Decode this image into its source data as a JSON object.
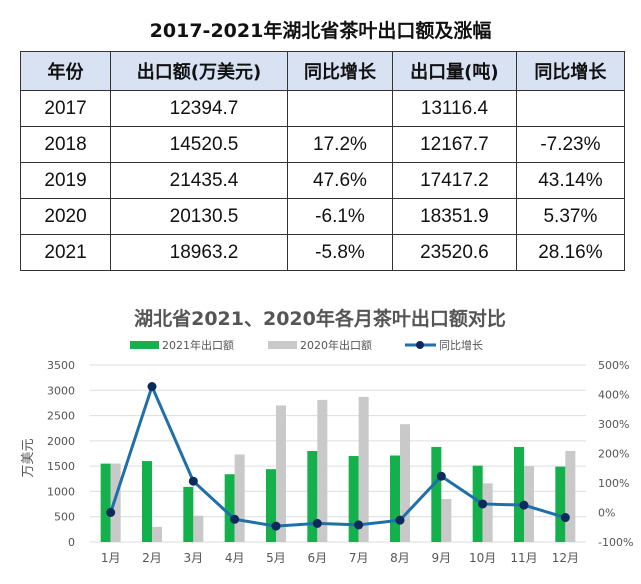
{
  "table": {
    "title": "2017-2021年湖北省茶叶出口额及涨幅",
    "headers": [
      "年份",
      "出口额(万美元)",
      "同比增长",
      "出口量(吨)",
      "同比增长"
    ],
    "rows": [
      [
        "2017",
        "12394.7",
        "",
        "13116.4",
        ""
      ],
      [
        "2018",
        "14520.5",
        "17.2%",
        "12167.7",
        "-7.23%"
      ],
      [
        "2019",
        "21435.4",
        "47.6%",
        "17417.2",
        "43.14%"
      ],
      [
        "2020",
        "20130.5",
        "-6.1%",
        "18351.9",
        "5.37%"
      ],
      [
        "2021",
        "18963.2",
        "-5.8%",
        "23520.6",
        "28.16%"
      ]
    ]
  },
  "chart_data": {
    "type": "bar",
    "title": "湖北省2021、2020年各月茶叶出口额对比",
    "ylabel": "万美元",
    "categories": [
      "1月",
      "2月",
      "3月",
      "4月",
      "5月",
      "6月",
      "7月",
      "8月",
      "9月",
      "10月",
      "11月",
      "12月"
    ],
    "ylim": [
      0,
      3500
    ],
    "yticks": [
      "0",
      "500",
      "1000",
      "1500",
      "2000",
      "2500",
      "3000",
      "3500"
    ],
    "y2lim": [
      -100,
      500
    ],
    "y2ticks": [
      "-100%",
      "0%",
      "100%",
      "200%",
      "300%",
      "400%",
      "500%"
    ],
    "grid": true,
    "legend_position": "top",
    "series": [
      {
        "name": "2021年出口额",
        "kind": "bar",
        "color": "#14b04c",
        "values": [
          1550,
          1600,
          1090,
          1340,
          1440,
          1800,
          1700,
          1710,
          1880,
          1510,
          1880,
          1490
        ]
      },
      {
        "name": "2020年出口额",
        "kind": "bar",
        "color": "#c9c9c9",
        "values": [
          1550,
          300,
          520,
          1730,
          2700,
          2810,
          2870,
          2330,
          850,
          1160,
          1500,
          1800
        ]
      },
      {
        "name": "同比增长",
        "kind": "line",
        "axis": "right",
        "color": "#1f6fa8",
        "marker_color": "#0d2a5c",
        "values": [
          0,
          427,
          106,
          -23,
          -46,
          -37,
          -42,
          -26,
          123,
          29,
          25,
          -17
        ]
      }
    ]
  }
}
